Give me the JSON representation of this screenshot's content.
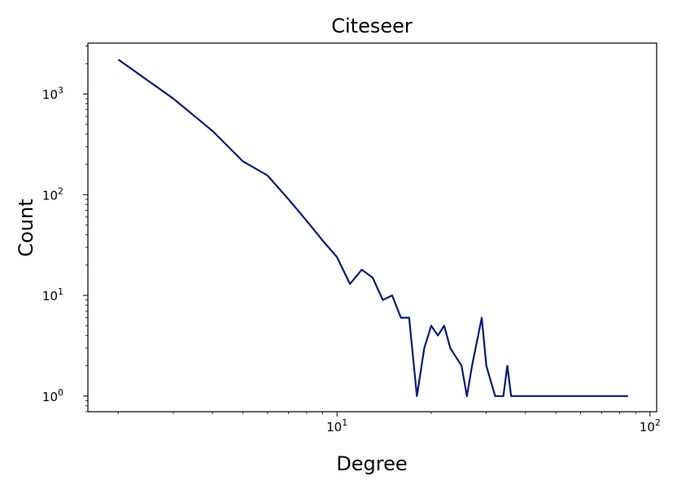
{
  "chart_data": {
    "type": "line",
    "title": "Citeseer",
    "xlabel": "Degree",
    "ylabel": "Count",
    "xscale": "log",
    "yscale": "log",
    "xlim": [
      1.6,
      105
    ],
    "ylim": [
      0.7,
      3200
    ],
    "grid": false,
    "line_color": "#001a7a",
    "x_ticks": [
      {
        "value": 10,
        "base": "10",
        "exp": "1"
      },
      {
        "value": 100,
        "base": "10",
        "exp": "2"
      }
    ],
    "y_ticks": [
      {
        "value": 1,
        "base": "10",
        "exp": "0"
      },
      {
        "value": 10,
        "base": "10",
        "exp": "1"
      },
      {
        "value": 100,
        "base": "10",
        "exp": "2"
      },
      {
        "value": 1000,
        "base": "10",
        "exp": "3"
      }
    ],
    "series": [
      {
        "x": [
          2,
          3,
          4,
          5,
          6,
          7,
          8,
          9,
          10,
          11,
          12,
          13,
          14,
          15,
          16,
          17,
          18,
          19,
          20,
          21,
          22,
          23,
          25,
          26,
          27,
          29,
          30,
          32,
          34,
          35,
          36,
          85
        ],
        "y": [
          2200,
          900,
          430,
          215,
          155,
          90,
          55,
          35,
          24,
          13,
          18,
          15,
          9,
          10,
          6,
          6,
          1,
          3,
          5,
          4,
          5,
          3,
          2,
          1,
          2,
          6,
          2,
          1,
          1,
          2,
          1,
          1
        ]
      }
    ]
  }
}
